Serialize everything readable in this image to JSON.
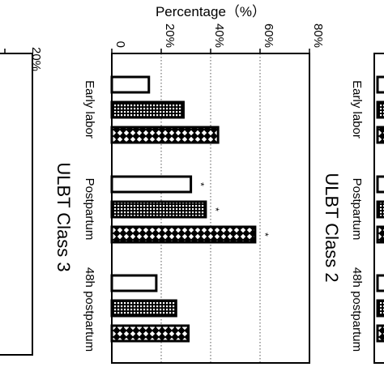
{
  "chart_data": {
    "type": "bar",
    "orientation": "horizontal",
    "ylabel": "Percentage（%）",
    "ylim": [
      0,
      80
    ],
    "yticks": [
      "0",
      "20%",
      "40%",
      "60%",
      "80%"
    ],
    "grid": true,
    "main_panel": {
      "title": "ULBT Class 2",
      "categories": [
        "Early labor",
        "Postpartum",
        "48h postpartum"
      ],
      "series": [
        {
          "pattern": "white",
          "values": [
            15,
            32,
            18
          ]
        },
        {
          "pattern": "grid",
          "values": [
            29,
            38,
            26
          ]
        },
        {
          "pattern": "crosshatch",
          "values": [
            43,
            58,
            31
          ]
        }
      ],
      "significance": [
        [
          false,
          false,
          false
        ],
        [
          true,
          true,
          true
        ],
        [
          false,
          false,
          false
        ]
      ],
      "significance_marker": "*"
    },
    "left_panel": {
      "title": "ULBT Class 3",
      "visible_tick": "20%"
    },
    "right_panel": {
      "categories": [
        "Early labor",
        "Postpartum",
        "48h postpartum"
      ]
    }
  }
}
